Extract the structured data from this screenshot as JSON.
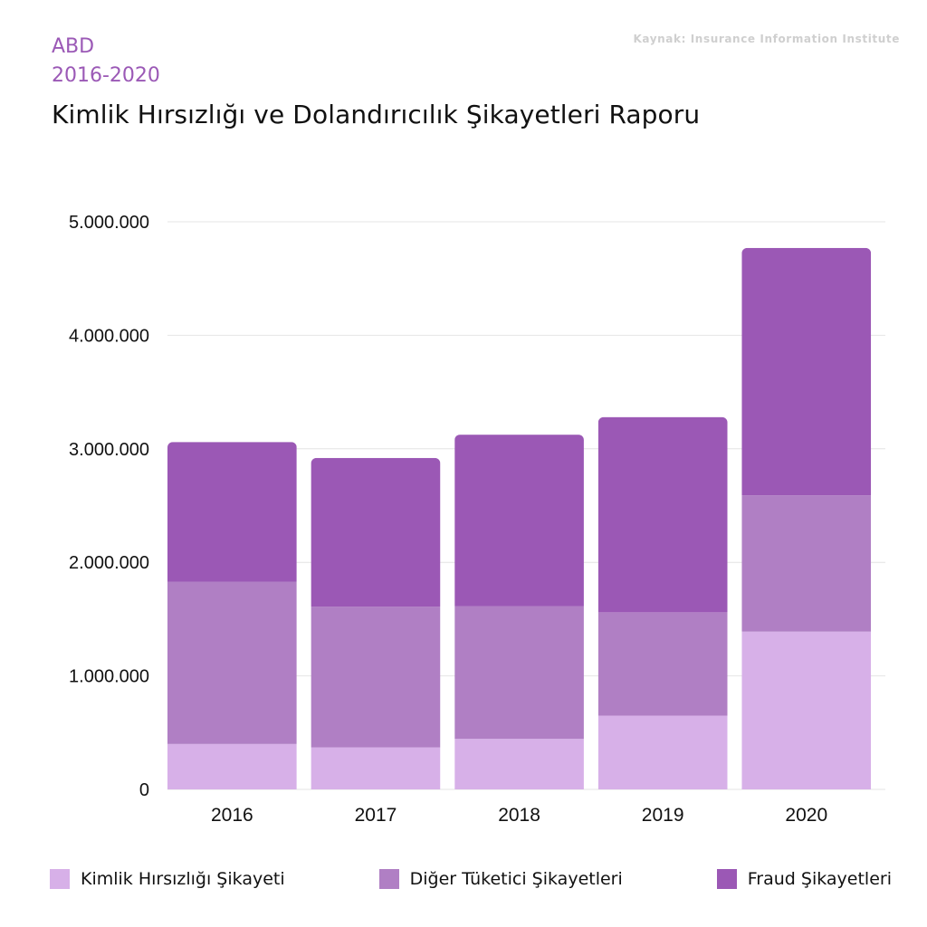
{
  "header": {
    "region": "ABD",
    "years": "2016-2020",
    "title": "Kimlik Hırsızlığı ve Dolandırıcılık Şikayetleri Raporu",
    "source": "Kaynak: Insurance Information Institute"
  },
  "colors": {
    "identity": "#d7b0e8",
    "other": "#b07fc4",
    "fraud": "#9b58b5",
    "grid": "#e4e4e4",
    "axis_text": "#111111"
  },
  "chart_data": {
    "type": "bar",
    "stacked": true,
    "categories": [
      "2016",
      "2017",
      "2018",
      "2019",
      "2020"
    ],
    "series": [
      {
        "name": "Kimlik Hırsızlığı Şikayeti",
        "values": [
          400000,
          370000,
          445000,
          650000,
          1390000
        ]
      },
      {
        "name": "Diğer Tüketici Şikayetleri",
        "values": [
          1430000,
          1240000,
          1170000,
          910000,
          1200000
        ]
      },
      {
        "name": "Fraud Şikayetleri",
        "values": [
          1230000,
          1310000,
          1510000,
          1720000,
          2180000
        ]
      }
    ],
    "y_ticks": [
      "0",
      "1.000.000",
      "2.000.000",
      "3.000.000",
      "4.000.000",
      "5.000.000"
    ],
    "ylim": [
      0,
      5000000
    ],
    "grid": true,
    "legend_position": "bottom"
  }
}
